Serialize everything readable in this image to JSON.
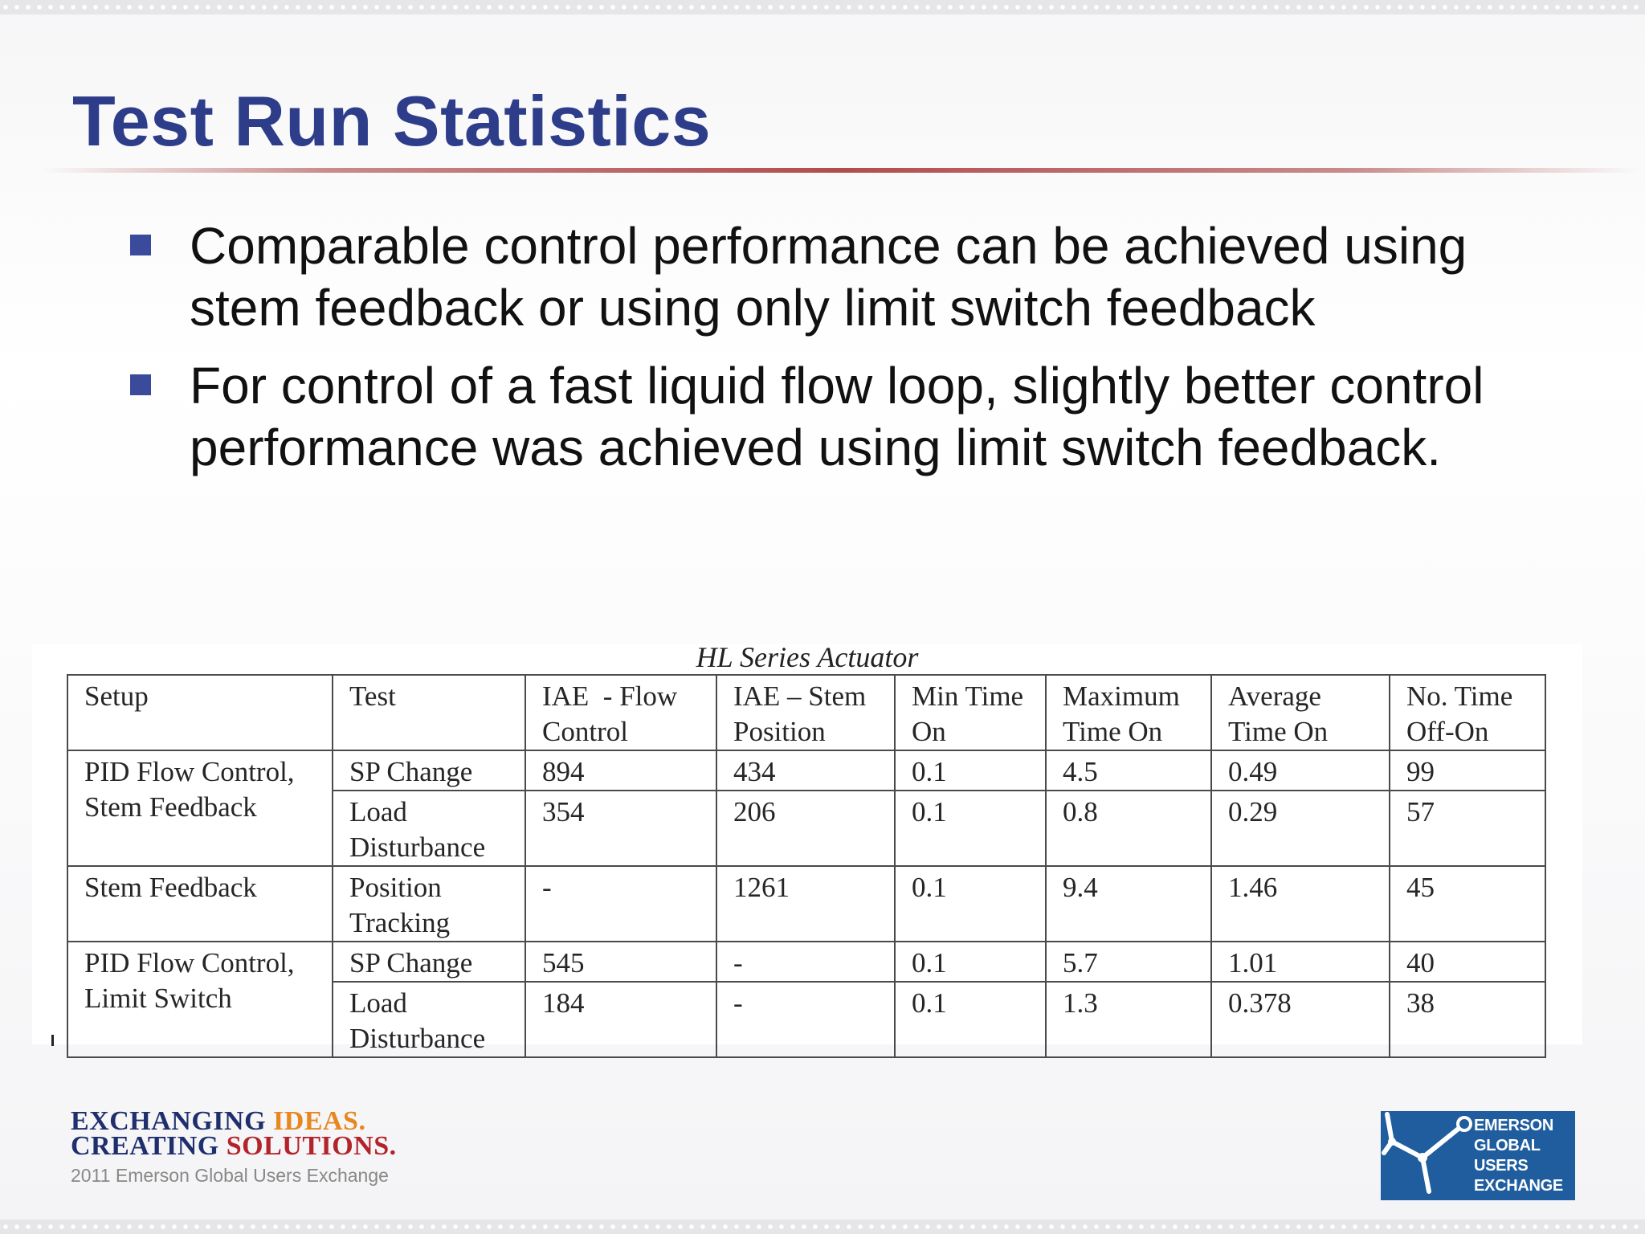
{
  "slide": {
    "title": "Test Run Statistics",
    "bullets": [
      "Comparable control performance can be achieved using stem feedback or using only limit switch feedback",
      "For control of a fast liquid flow loop, slightly better control performance was achieved using limit switch feedback."
    ]
  },
  "table": {
    "caption": "HL Series Actuator",
    "headers": [
      "Setup",
      "Test",
      "IAE  - Flow Control",
      "IAE – Stem Position",
      "Min Time On",
      "Maximum Time On",
      "Average Time On",
      "No. Time Off-On"
    ],
    "rows": [
      {
        "setup": "PID Flow Control, Stem Feedback",
        "test": "SP Change",
        "iae_flow": "894",
        "iae_stem": "434",
        "min_on": "0.1",
        "max_on": "4.5",
        "avg_on": "0.49",
        "count": "99"
      },
      {
        "setup": "",
        "test": "Load Disturbance",
        "iae_flow": "354",
        "iae_stem": "206",
        "min_on": "0.1",
        "max_on": "0.8",
        "avg_on": "0.29",
        "count": "57"
      },
      {
        "setup": "Stem Feedback",
        "test": "Position Tracking",
        "iae_flow": "-",
        "iae_stem": "1261",
        "min_on": "0.1",
        "max_on": "9.4",
        "avg_on": "1.46",
        "count": "45"
      },
      {
        "setup": "PID Flow Control, Limit Switch",
        "test": "SP Change",
        "iae_flow": "545",
        "iae_stem": "-",
        "min_on": "0.1",
        "max_on": "5.7",
        "avg_on": "1.01",
        "count": "40"
      },
      {
        "setup": "",
        "test": "Load Disturbance",
        "iae_flow": "184",
        "iae_stem": "-",
        "min_on": "0.1",
        "max_on": "1.3",
        "avg_on": "0.378",
        "count": "38"
      }
    ]
  },
  "footer": {
    "slogan_line1_a": "EXCHANGING ",
    "slogan_line1_b": "IDEAS.",
    "slogan_line2_a": "CREATING ",
    "slogan_line2_b": "SOLUTIONS.",
    "subtitle": "2011 Emerson Global Users Exchange",
    "logo_lines": [
      "EMERSON",
      "GLOBAL",
      "USERS",
      "EXCHANGE"
    ]
  },
  "colors": {
    "title": "#2e3d8a",
    "bullet_marker": "#3a4b9c",
    "rule": "#b24c4c",
    "logo_bg": "#1f5d9e",
    "slogan_navy": "#1f2f6e",
    "slogan_orange": "#e8871e",
    "slogan_red": "#b3242a"
  },
  "icons": {
    "logo": "emerson-network-logo-icon",
    "bullet": "square-bullet-icon"
  }
}
